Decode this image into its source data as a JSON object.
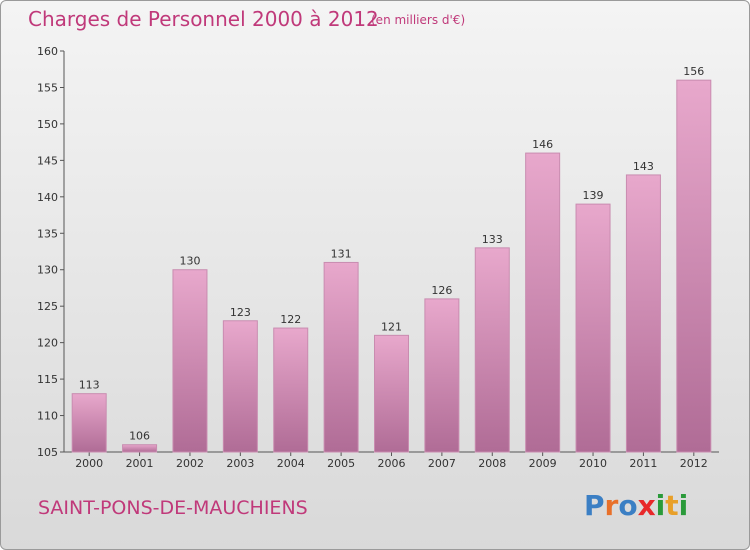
{
  "title": "Charges de Personnel 2000 à 2012",
  "subtitle": "(en milliers d'€)",
  "commune": "SAINT-PONS-DE-MAUCHIENS",
  "logo": {
    "letters": [
      "P",
      "r",
      "o",
      "x",
      "i",
      "t",
      "i"
    ],
    "colors": [
      "#3b7fc4",
      "#e8702a",
      "#3b7fc4",
      "#e8282a",
      "#2a9a3a",
      "#e8a02a",
      "#2a9a3a"
    ]
  },
  "colors": {
    "bar_top": "#e8a8cc",
    "bar_bottom": "#b06c96",
    "accent": "#c0397a"
  },
  "chart_data": {
    "type": "bar",
    "categories": [
      "2000",
      "2001",
      "2002",
      "2003",
      "2004",
      "2005",
      "2006",
      "2007",
      "2008",
      "2009",
      "2010",
      "2011",
      "2012"
    ],
    "values": [
      113,
      106,
      130,
      123,
      122,
      131,
      121,
      126,
      133,
      146,
      139,
      143,
      156
    ],
    "ylim": [
      105,
      160
    ],
    "yticks": [
      105,
      110,
      115,
      120,
      125,
      130,
      135,
      140,
      145,
      150,
      155,
      160
    ],
    "grid": false
  }
}
